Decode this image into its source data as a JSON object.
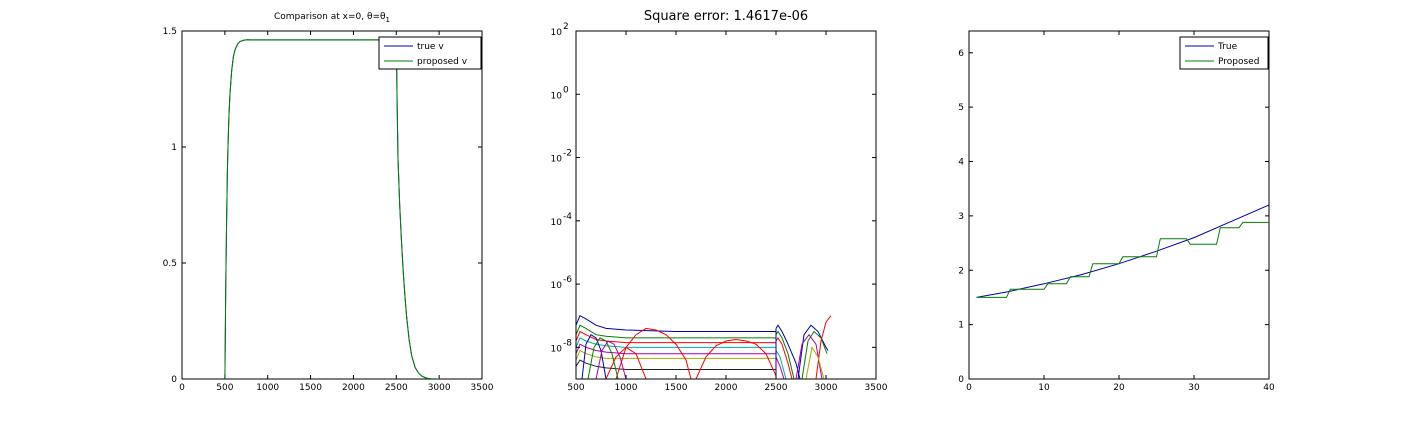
{
  "figure": {
    "background": "#ffffff",
    "axes_color": "#000000"
  },
  "chart_data": [
    {
      "id": "p1",
      "type": "line",
      "title": "Comparison at x=0, θ=θ",
      "title_subscript": "1",
      "xlim": [
        0,
        3500
      ],
      "ylim": [
        0,
        1.5
      ],
      "xticks": [
        0,
        500,
        1000,
        1500,
        2000,
        2500,
        3000,
        3500
      ],
      "xtick_labels": [
        "0",
        "500",
        "1000",
        "1500",
        "2000",
        "2500",
        "3000",
        "3500"
      ],
      "yticks": [
        0,
        0.5,
        1,
        1.5
      ],
      "ytick_labels": [
        "0",
        "0.5",
        "1",
        "1.5"
      ],
      "legend_position": "top-right",
      "series": [
        {
          "name": "true v",
          "color": "#0000aa",
          "x": [
            500,
            510,
            520,
            530,
            540,
            550,
            560,
            580,
            600,
            620,
            650,
            680,
            720,
            760,
            800,
            900,
            1000,
            1500,
            2000,
            2400,
            2450,
            2480,
            2490,
            2500,
            2510,
            2520,
            2540,
            2560,
            2580,
            2600,
            2620,
            2650,
            2680,
            2720,
            2760,
            2800,
            2850,
            2900,
            3000
          ],
          "y": [
            0,
            0.38,
            0.68,
            0.9,
            1.05,
            1.15,
            1.23,
            1.33,
            1.39,
            1.42,
            1.445,
            1.455,
            1.46,
            1.462,
            1.4617,
            1.4617,
            1.4617,
            1.4617,
            1.4617,
            1.4617,
            1.4617,
            1.4617,
            1.4617,
            1.4617,
            1.2,
            0.95,
            0.75,
            0.6,
            0.47,
            0.36,
            0.27,
            0.17,
            0.1,
            0.05,
            0.025,
            0.012,
            0.004,
            0.001,
            0
          ]
        },
        {
          "name": "proposed v",
          "color": "#008000",
          "x": [
            500,
            510,
            520,
            530,
            540,
            550,
            560,
            580,
            600,
            620,
            650,
            680,
            720,
            760,
            800,
            900,
            1000,
            1500,
            2000,
            2400,
            2450,
            2480,
            2490,
            2500,
            2510,
            2520,
            2540,
            2560,
            2580,
            2600,
            2620,
            2650,
            2680,
            2720,
            2760,
            2800,
            2850,
            2900,
            3000
          ],
          "y": [
            0,
            0.38,
            0.68,
            0.9,
            1.05,
            1.15,
            1.23,
            1.33,
            1.39,
            1.42,
            1.445,
            1.455,
            1.46,
            1.462,
            1.4617,
            1.4617,
            1.4617,
            1.4617,
            1.4617,
            1.4617,
            1.4617,
            1.4617,
            1.4617,
            1.4617,
            1.2,
            0.95,
            0.75,
            0.6,
            0.47,
            0.36,
            0.27,
            0.17,
            0.1,
            0.05,
            0.025,
            0.012,
            0.004,
            0.001,
            0
          ]
        }
      ]
    },
    {
      "id": "p2",
      "type": "line",
      "title": "Square error: 1.4617e-06",
      "xlim": [
        500,
        3500
      ],
      "ylim_log10": [
        -9,
        2
      ],
      "yscale": "log",
      "xticks": [
        500,
        1000,
        1500,
        2000,
        2500,
        3000,
        3500
      ],
      "xtick_labels": [
        "500",
        "1000",
        "1500",
        "2000",
        "2500",
        "3000",
        "3500"
      ],
      "yticks_log10": [
        -8,
        -6,
        -4,
        -2,
        0,
        2
      ],
      "ytick_base": "10",
      "ytick_exponents": [
        "-8",
        "-6",
        "-4",
        "-2",
        "0",
        "2"
      ],
      "series": [
        {
          "color": "#0000aa",
          "x": [
            500,
            540,
            600,
            700,
            800,
            1000,
            1500,
            2500
          ],
          "log10y": [
            -7.3,
            -7.0,
            -7.1,
            -7.3,
            -7.4,
            -7.45,
            -7.5,
            -7.5
          ]
        },
        {
          "color": "#008000",
          "x": [
            500,
            540,
            600,
            700,
            800,
            1000,
            1500,
            2500
          ],
          "log10y": [
            -7.6,
            -7.3,
            -7.4,
            -7.6,
            -7.65,
            -7.7,
            -7.7,
            -7.7
          ]
        },
        {
          "color": "#ff0000",
          "x": [
            500,
            540,
            600,
            700,
            800,
            1000,
            1500,
            2500
          ],
          "log10y": [
            -7.8,
            -7.5,
            -7.6,
            -7.75,
            -7.8,
            -7.85,
            -7.85,
            -7.85
          ]
        },
        {
          "color": "#00aaaa",
          "x": [
            500,
            540,
            600,
            700,
            800,
            1000,
            1500,
            2500
          ],
          "log10y": [
            -8.0,
            -7.7,
            -7.8,
            -7.9,
            -7.95,
            -8.0,
            -8.0,
            -8.0
          ]
        },
        {
          "color": "#aa00aa",
          "x": [
            500,
            540,
            600,
            700,
            800,
            1000,
            1500,
            2500
          ],
          "log10y": [
            -8.2,
            -7.9,
            -8.0,
            -8.1,
            -8.15,
            -8.2,
            -8.2,
            -8.2
          ]
        },
        {
          "color": "#aaaa00",
          "x": [
            500,
            540,
            600,
            700,
            800,
            1000,
            1500,
            2500
          ],
          "log10y": [
            -8.4,
            -8.1,
            -8.2,
            -8.3,
            -8.35,
            -8.35,
            -8.35,
            -8.35
          ]
        },
        {
          "color": "#222222",
          "x": [
            500,
            540,
            600,
            700,
            800,
            1000,
            1500,
            2500
          ],
          "log10y": [
            -8.6,
            -8.4,
            -8.5,
            -8.6,
            -8.65,
            -8.7,
            -8.7,
            -8.7
          ]
        },
        {
          "color": "#ff0000",
          "x": [
            900,
            1000,
            1100,
            1200,
            1300,
            1400,
            1500,
            1600,
            1650
          ],
          "log10y": [
            -9.0,
            -8.0,
            -7.6,
            -7.4,
            -7.45,
            -7.6,
            -7.9,
            -8.4,
            -9.0
          ]
        },
        {
          "color": "#ff0000",
          "x": [
            1700,
            1800,
            1900,
            2000,
            2100,
            2200,
            2300,
            2400,
            2500
          ],
          "log10y": [
            -9.0,
            -8.3,
            -7.95,
            -7.8,
            -7.75,
            -7.8,
            -7.9,
            -8.2,
            -8.9
          ]
        },
        {
          "color": "#0000aa",
          "x": [
            560,
            600,
            650,
            700,
            750,
            800
          ],
          "log10y": [
            -9.0,
            -7.9,
            -7.6,
            -7.7,
            -8.1,
            -9.0
          ]
        },
        {
          "color": "#008000",
          "x": [
            620,
            680,
            740,
            800,
            860,
            920
          ],
          "log10y": [
            -9.0,
            -8.0,
            -7.7,
            -7.8,
            -8.2,
            -9.0
          ]
        },
        {
          "color": "#aa00aa",
          "x": [
            700,
            760,
            820,
            880,
            940,
            1000
          ],
          "log10y": [
            -9.0,
            -8.1,
            -7.8,
            -7.9,
            -8.3,
            -9.0
          ]
        },
        {
          "color": "#ff0000",
          "x": [
            800,
            900,
            1000,
            1100,
            1200
          ],
          "log10y": [
            -9.0,
            -8.3,
            -8.0,
            -8.2,
            -9.0
          ]
        },
        {
          "color": "#0000aa",
          "x": [
            2500,
            2520,
            2560,
            2620,
            2700,
            2740
          ],
          "log10y": [
            -7.4,
            -7.3,
            -7.5,
            -7.9,
            -8.5,
            -9.0
          ]
        },
        {
          "color": "#008000",
          "x": [
            2500,
            2520,
            2560,
            2620,
            2680
          ],
          "log10y": [
            -7.6,
            -7.5,
            -7.7,
            -8.2,
            -9.0
          ]
        },
        {
          "color": "#ff0000",
          "x": [
            2500,
            2520,
            2560,
            2620,
            2660
          ],
          "log10y": [
            -7.8,
            -7.7,
            -7.9,
            -8.5,
            -9.0
          ]
        },
        {
          "color": "#00aaaa",
          "x": [
            2500,
            2540,
            2600
          ],
          "log10y": [
            -8.1,
            -8.3,
            -9.0
          ]
        },
        {
          "color": "#aa00aa",
          "x": [
            2500,
            2540,
            2580
          ],
          "log10y": [
            -8.3,
            -8.6,
            -9.0
          ]
        },
        {
          "color": "#0000aa",
          "x": [
            2720,
            2780,
            2850,
            2920,
            3000,
            3020
          ],
          "log10y": [
            -9.0,
            -7.6,
            -7.3,
            -7.5,
            -8.0,
            -8.1
          ]
        },
        {
          "color": "#008000",
          "x": [
            2760,
            2820,
            2880,
            2950,
            3010
          ],
          "log10y": [
            -9.0,
            -7.8,
            -7.5,
            -7.7,
            -8.2
          ]
        },
        {
          "color": "#aa00aa",
          "x": [
            2700,
            2760,
            2830,
            2900,
            2960
          ],
          "log10y": [
            -9.0,
            -7.9,
            -7.6,
            -7.9,
            -9.0
          ]
        },
        {
          "color": "#ff0000",
          "x": [
            2900,
            2950,
            3000,
            3050
          ],
          "log10y": [
            -9.0,
            -7.8,
            -7.2,
            -7.0
          ]
        },
        {
          "color": "#aaaa00",
          "x": [
            2800,
            2860,
            2920,
            2980
          ],
          "log10y": [
            -9.0,
            -8.0,
            -8.3,
            -9.0
          ]
        },
        {
          "color": "#0000aa",
          "x": [
            2500,
            2500
          ],
          "log10y": [
            -9.0,
            -7.4
          ]
        },
        {
          "color": "#0000aa",
          "x": [
            500,
            500
          ],
          "log10y": [
            -9.0,
            -7.3
          ]
        }
      ]
    },
    {
      "id": "p3",
      "type": "line",
      "title": "",
      "xlim": [
        0,
        40
      ],
      "ylim": [
        0,
        6.4
      ],
      "xticks": [
        0,
        10,
        20,
        30,
        40
      ],
      "xtick_labels": [
        "0",
        "10",
        "20",
        "30",
        "40"
      ],
      "yticks": [
        0,
        1,
        2,
        3,
        4,
        5,
        6
      ],
      "ytick_labels": [
        "0",
        "1",
        "2",
        "3",
        "4",
        "5",
        "6"
      ],
      "legend_position": "top-right",
      "series": [
        {
          "name": "True",
          "color": "#0000aa",
          "x": [
            1,
            5,
            10,
            15,
            20,
            25,
            30,
            35,
            40
          ],
          "y": [
            1.5,
            1.6,
            1.75,
            1.92,
            2.12,
            2.35,
            2.6,
            2.9,
            3.2
          ]
        },
        {
          "name": "Proposed",
          "color": "#008000",
          "x": [
            1,
            3,
            3.5,
            5,
            5.5,
            8,
            8.5,
            10,
            10.5,
            13,
            13.5,
            16,
            16.5,
            20,
            20.5,
            23,
            23.5,
            25,
            25.5,
            29,
            29.5,
            33,
            33.5,
            36,
            36.5,
            40
          ],
          "y": [
            1.5,
            1.5,
            1.5,
            1.5,
            1.65,
            1.65,
            1.65,
            1.65,
            1.75,
            1.75,
            1.88,
            1.88,
            2.12,
            2.12,
            2.25,
            2.25,
            2.25,
            2.25,
            2.58,
            2.58,
            2.48,
            2.48,
            2.78,
            2.78,
            2.88,
            2.88
          ]
        }
      ]
    }
  ]
}
